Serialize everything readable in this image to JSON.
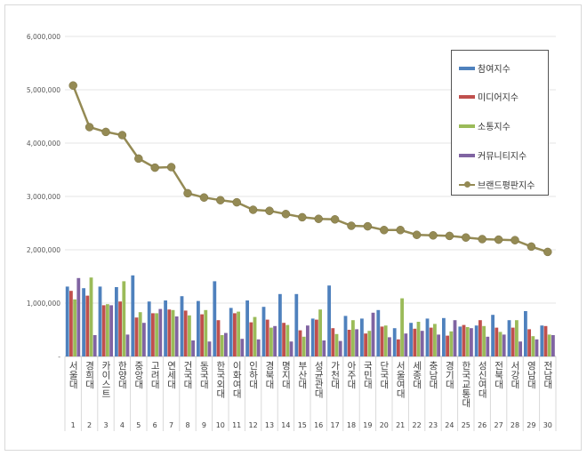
{
  "chart_data": {
    "type": "bar+line",
    "ylim": [
      0,
      6000000
    ],
    "yticks": [
      "-",
      "1,000,000",
      "2,000,000",
      "3,000,000",
      "4,000,000",
      "5,000,000",
      "6,000,000"
    ],
    "grid": true,
    "legend_placement": "top-right",
    "categories": [
      "서울대",
      "경희대",
      "카이스트",
      "한양대",
      "중앙대",
      "고려대",
      "연세대",
      "건국대",
      "동국대",
      "한국외대",
      "이화여대",
      "인하대",
      "경북대",
      "명지대",
      "부산대",
      "성균관대",
      "가천대",
      "아주대",
      "국민대",
      "단국대",
      "서울여대",
      "세종대",
      "충남대",
      "경기대",
      "한국교통대",
      "성신여대",
      "전북대",
      "서강대",
      "영남대",
      "전남대"
    ],
    "ranks": [
      "1",
      "2",
      "3",
      "4",
      "5",
      "6",
      "7",
      "8",
      "9",
      "10",
      "11",
      "12",
      "13",
      "14",
      "15",
      "16",
      "17",
      "18",
      "19",
      "20",
      "21",
      "22",
      "23",
      "24",
      "25",
      "26",
      "27",
      "28",
      "29",
      "30"
    ],
    "series": [
      {
        "name": "참여지수",
        "type": "bar",
        "color": "#4f81bd",
        "values": [
          1310000,
          1280000,
          1310000,
          1300000,
          1520000,
          1030000,
          1050000,
          1130000,
          1040000,
          1410000,
          910000,
          1050000,
          930000,
          1170000,
          1170000,
          710000,
          1330000,
          760000,
          710000,
          870000,
          530000,
          630000,
          710000,
          720000,
          560000,
          580000,
          780000,
          680000,
          850000,
          580000
        ]
      },
      {
        "name": "미디어지수",
        "type": "bar",
        "color": "#c0504d",
        "values": [
          1230000,
          1140000,
          960000,
          1030000,
          730000,
          810000,
          880000,
          860000,
          790000,
          680000,
          810000,
          640000,
          690000,
          630000,
          490000,
          690000,
          530000,
          500000,
          430000,
          560000,
          320000,
          520000,
          540000,
          390000,
          590000,
          680000,
          540000,
          540000,
          510000,
          570000
        ]
      },
      {
        "name": "소통지수",
        "type": "bar",
        "color": "#9bbb59",
        "values": [
          1070000,
          1480000,
          980000,
          1410000,
          830000,
          810000,
          870000,
          770000,
          870000,
          400000,
          840000,
          740000,
          540000,
          590000,
          370000,
          880000,
          420000,
          680000,
          480000,
          580000,
          1090000,
          650000,
          610000,
          470000,
          550000,
          570000,
          460000,
          680000,
          380000,
          410000
        ]
      },
      {
        "name": "커뮤니티지수",
        "type": "bar",
        "color": "#8064a2",
        "values": [
          1470000,
          400000,
          960000,
          410000,
          630000,
          890000,
          750000,
          300000,
          280000,
          440000,
          330000,
          320000,
          570000,
          280000,
          580000,
          300000,
          290000,
          510000,
          820000,
          360000,
          430000,
          480000,
          410000,
          680000,
          530000,
          370000,
          410000,
          280000,
          320000,
          400000
        ]
      },
      {
        "name": "브랜드평판지수",
        "type": "line",
        "color": "#948a54",
        "values": [
          5080000,
          4300000,
          4210000,
          4150000,
          3710000,
          3540000,
          3550000,
          3060000,
          2980000,
          2930000,
          2890000,
          2750000,
          2730000,
          2670000,
          2610000,
          2580000,
          2570000,
          2450000,
          2440000,
          2370000,
          2370000,
          2280000,
          2270000,
          2260000,
          2230000,
          2200000,
          2190000,
          2180000,
          2060000,
          1960000
        ]
      }
    ]
  }
}
